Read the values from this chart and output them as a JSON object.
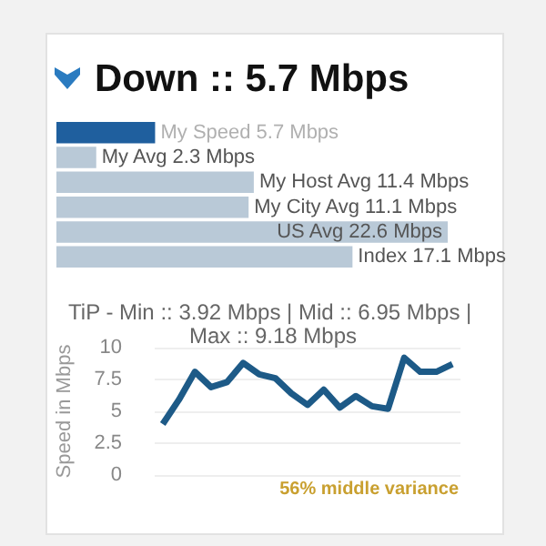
{
  "chart_data": [
    {
      "type": "bar",
      "orientation": "horizontal",
      "title": "Down :: 5.7 Mbps",
      "categories": [
        null,
        null,
        null,
        null,
        null,
        null
      ],
      "values": [
        5.7,
        2.3,
        11.4,
        11.1,
        22.6,
        17.1
      ],
      "value_labels": [
        "My Speed 5.7 Mbps",
        "My Avg 2.3 Mbps",
        "My Host Avg 11.4 Mbps",
        "My City Avg 11.1 Mbps",
        "US Avg 22.6 Mbps",
        "Index 17.1 Mbps"
      ],
      "colors": [
        "#1f5f9e",
        "#b9c9d7",
        "#b9c9d7",
        "#b9c9d7",
        "#b9c9d7",
        "#b9c9d7"
      ]
    },
    {
      "type": "line",
      "title": "TiP - Min :: 3.92 Mbps | Mid :: 6.95 Mbps | Max :: 9.18 Mbps",
      "ylabel": "Speed in Mbps",
      "categories": [
        null,
        null,
        null,
        null,
        null,
        null,
        null,
        null,
        null,
        null,
        null,
        null,
        null,
        null,
        null,
        null,
        null,
        null,
        null
      ],
      "series": [
        {
          "color": "#1d5a87",
          "values": [
            4.0,
            5.9,
            8.1,
            6.9,
            7.3,
            8.8,
            7.9,
            7.6,
            6.4,
            5.5,
            6.7,
            5.3,
            6.2,
            5.4,
            5.2,
            9.2,
            8.1,
            8.1,
            8.7
          ]
        }
      ],
      "ylim": [
        0,
        10
      ],
      "yticks": [
        0,
        2.5,
        5,
        7.5,
        10
      ],
      "grid": "y",
      "tick_labels": "y",
      "annotations": [
        "56% middle variance"
      ]
    }
  ]
}
